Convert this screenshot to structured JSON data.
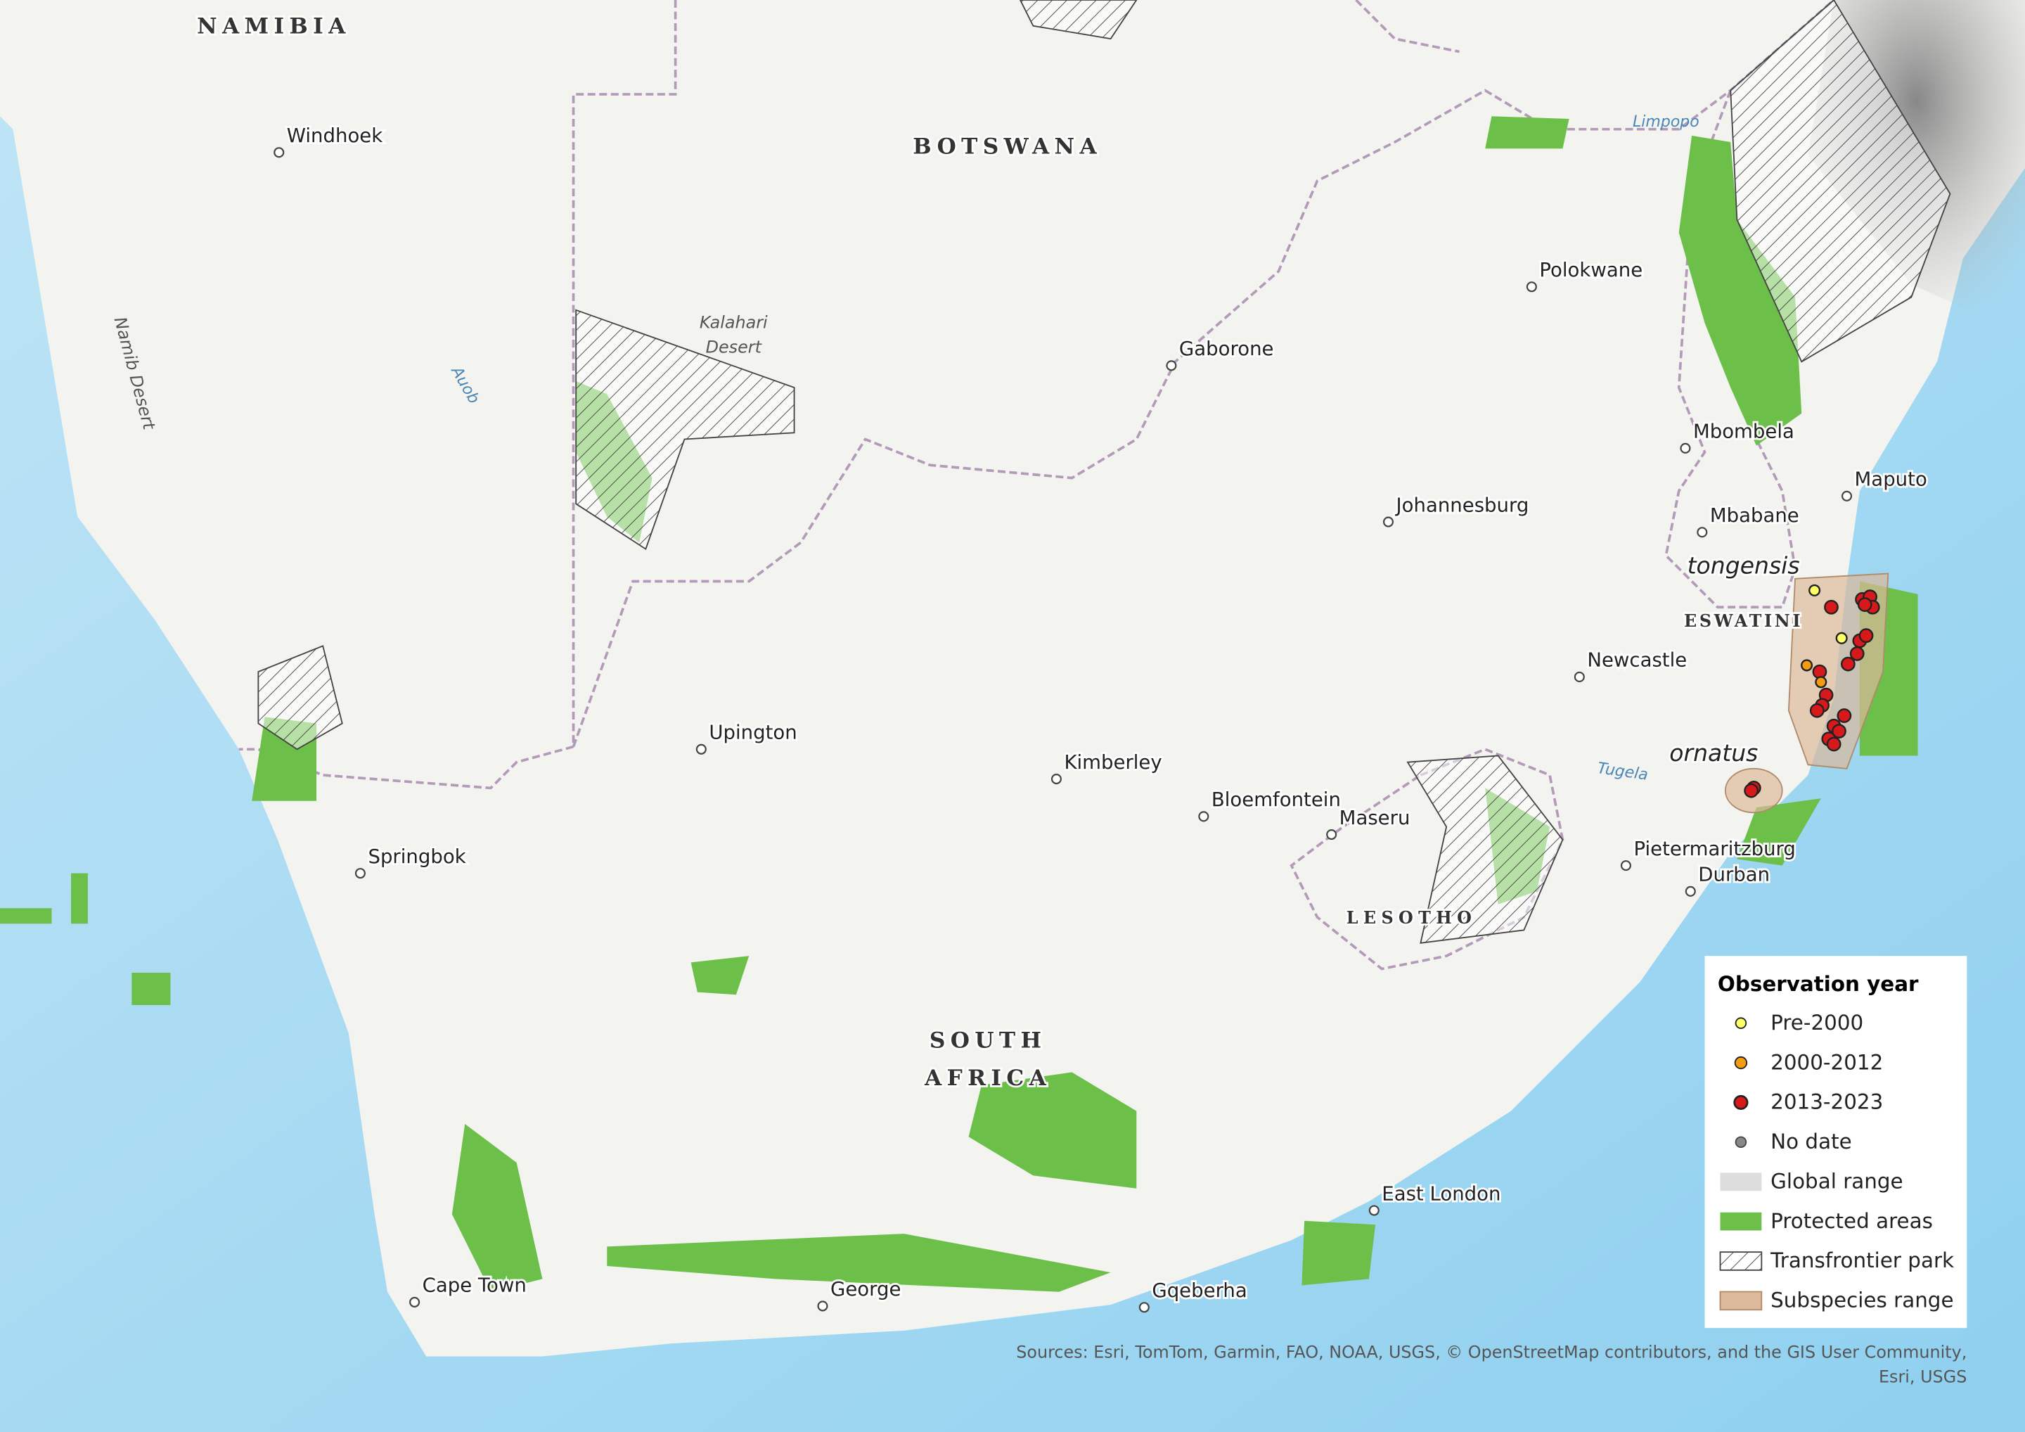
{
  "countries": {
    "namibia": "NAMIBIA",
    "botswana": "BOTSWANA",
    "south_africa": [
      "SOUTH",
      "AFRICA"
    ],
    "lesotho": "LESOTHO",
    "eswatini": "ESWATINI"
  },
  "cities": [
    "Windhoek",
    "Gaborone",
    "Polokwane",
    "Mbombela",
    "Johannesburg",
    "Maputo",
    "Mbabane",
    "Newcastle",
    "Upington",
    "Kimberley",
    "Bloemfontein",
    "Maseru",
    "Pietermaritzburg",
    "Durban",
    "Springbok",
    "East London",
    "Cape Town",
    "George",
    "Gqeberha"
  ],
  "features": {
    "kalahari": [
      "Kalahari",
      "Desert"
    ],
    "namib": "Namib Desert",
    "auob": "Auob",
    "limpopo": "Limpopo",
    "tugela": "Tugela"
  },
  "subspecies": [
    "tongensis",
    "ornatus"
  ],
  "legend": {
    "title": "Observation year",
    "items": [
      "Pre-2000",
      "2000-2012",
      "2013-2023",
      "No date",
      "Global range",
      "Protected areas",
      "Transfrontier park",
      "Subspecies range"
    ]
  },
  "attribution": [
    "Sources: Esri, TomTom, Garmin, FAO, NOAA, USGS, © OpenStreetMap contributors, and the GIS User Community,",
    "Esri, USGS"
  ]
}
